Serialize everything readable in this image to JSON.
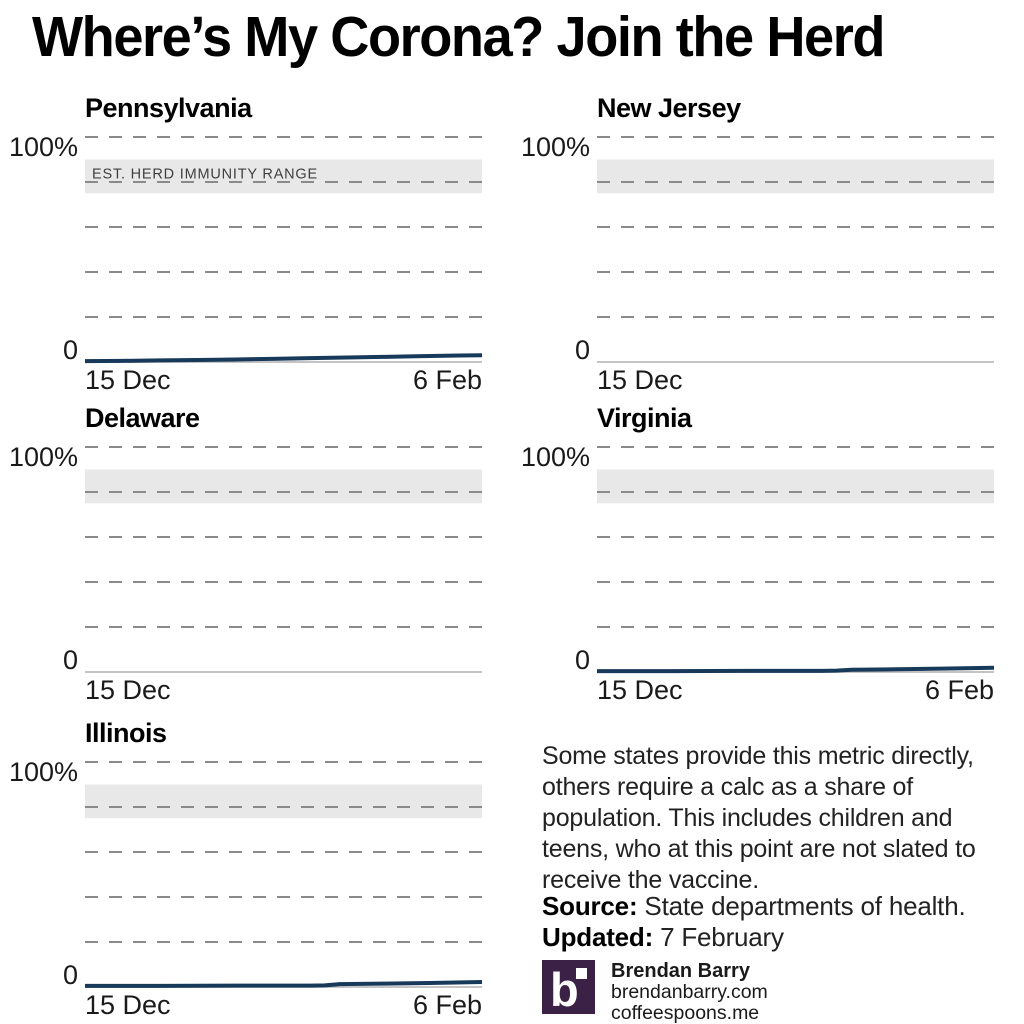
{
  "title": "Where’s My Corona? Join the Herd",
  "band_label": "EST. HERD IMMUNITY RANGE",
  "colors": {
    "line": "#17395a",
    "band": "#e8e8e8",
    "grid": "#8a8a8a",
    "axis": "#b0b0b0",
    "logo_purple": "#3a2145",
    "headline": "#000000",
    "body_text": "#222222"
  },
  "chart_data": [
    {
      "type": "line",
      "title": "Pennsylvania",
      "y_tick_labels": [
        "100%",
        "0"
      ],
      "x_tick_labels": [
        "15 Dec",
        "6 Feb"
      ],
      "ylim": [
        0,
        100
      ],
      "x_range_days": 53,
      "gridlines_pct": [
        100,
        80,
        60,
        40,
        20
      ],
      "herd_band_pct": [
        75,
        90
      ],
      "show_band_label": true,
      "series": [
        {
          "x_days": [
            0,
            5,
            10,
            15,
            20,
            25,
            30,
            35,
            40,
            45,
            50,
            53
          ],
          "values": [
            0.4,
            0.5,
            0.7,
            0.9,
            1.1,
            1.4,
            1.7,
            2.0,
            2.3,
            2.6,
            2.9,
            3.0
          ]
        }
      ]
    },
    {
      "type": "line",
      "title": "New Jersey",
      "y_tick_labels": [
        "100%",
        "0"
      ],
      "x_tick_labels": [
        "15 Dec"
      ],
      "ylim": [
        0,
        100
      ],
      "x_range_days": 53,
      "gridlines_pct": [
        100,
        80,
        60,
        40,
        20
      ],
      "herd_band_pct": [
        75,
        90
      ],
      "show_band_label": false,
      "series": []
    },
    {
      "type": "line",
      "title": "Delaware",
      "y_tick_labels": [
        "100%",
        "0"
      ],
      "x_tick_labels": [
        "15 Dec"
      ],
      "ylim": [
        0,
        100
      ],
      "x_range_days": 53,
      "gridlines_pct": [
        100,
        80,
        60,
        40,
        20
      ],
      "herd_band_pct": [
        75,
        90
      ],
      "show_band_label": false,
      "series": []
    },
    {
      "type": "line",
      "title": "Virginia",
      "y_tick_labels": [
        "100%",
        "0"
      ],
      "x_tick_labels": [
        "15 Dec",
        "6 Feb"
      ],
      "ylim": [
        0,
        100
      ],
      "x_range_days": 53,
      "gridlines_pct": [
        100,
        80,
        60,
        40,
        20
      ],
      "herd_band_pct": [
        75,
        90
      ],
      "show_band_label": false,
      "series": [
        {
          "x_days": [
            0,
            10,
            20,
            30,
            32,
            34,
            40,
            46,
            53
          ],
          "values": [
            0.4,
            0.4,
            0.5,
            0.5,
            0.6,
            1.0,
            1.2,
            1.5,
            1.9
          ]
        }
      ]
    },
    {
      "type": "line",
      "title": "Illinois",
      "y_tick_labels": [
        "100%",
        "0"
      ],
      "x_tick_labels": [
        "15 Dec",
        "6 Feb"
      ],
      "ylim": [
        0,
        100
      ],
      "x_range_days": 53,
      "gridlines_pct": [
        100,
        80,
        60,
        40,
        20
      ],
      "herd_band_pct": [
        75,
        90
      ],
      "show_band_label": false,
      "series": [
        {
          "x_days": [
            0,
            10,
            20,
            30,
            32,
            34,
            40,
            46,
            53
          ],
          "values": [
            0.5,
            0.5,
            0.6,
            0.6,
            0.7,
            1.3,
            1.5,
            1.8,
            2.2
          ]
        }
      ]
    }
  ],
  "notes": {
    "text": "Some states provide this metric directly, others require a calc as a share of population. This includes children and teens, who at this point are not slated to receive the vaccine."
  },
  "source": {
    "label": "Source:",
    "text": " State departments of health."
  },
  "updated": {
    "label": "Updated:",
    "text": " 7 February"
  },
  "credit": {
    "logo_letter": "b",
    "name": "Brendan Barry",
    "site1": "brendanbarry.com",
    "site2": "coffeespoons.me"
  }
}
